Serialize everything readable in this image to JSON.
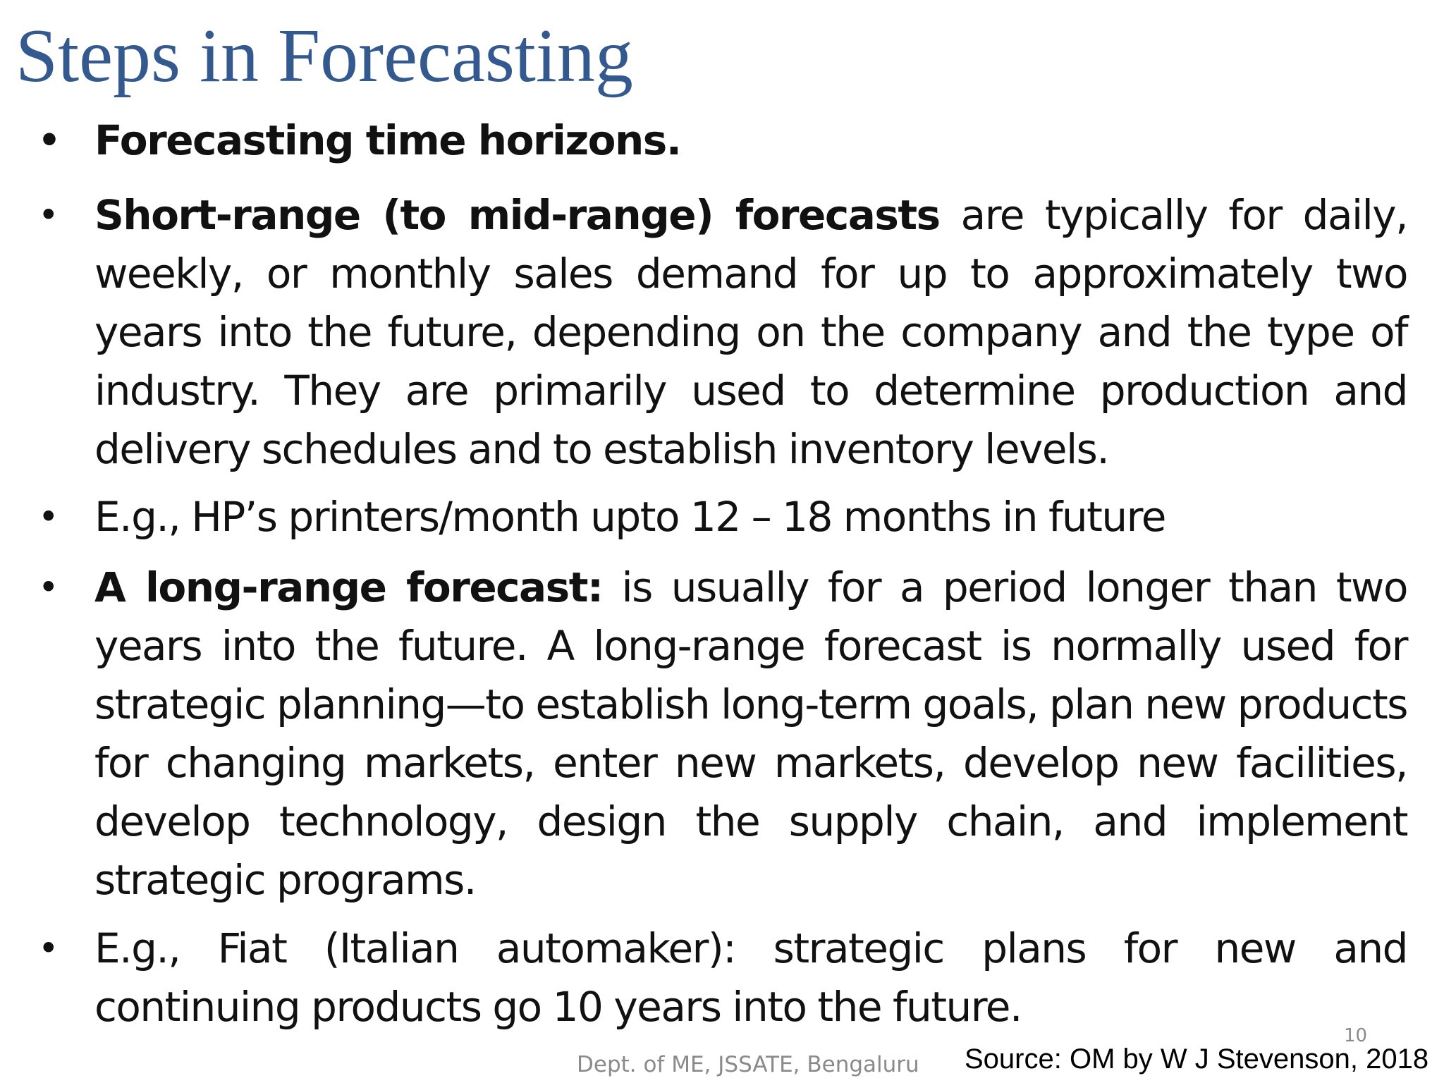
{
  "slide": {
    "title": "Steps in Forecasting",
    "bullets": [
      {
        "lead": "Forecasting time horizons.",
        "text": ""
      },
      {
        "lead": "Short-range (to mid-range) forecasts",
        "text": " are typically for daily, weekly, or monthly sales demand for up to approximately two years into the future, depending on the company and the type of industry. They are primarily used to determine production and delivery schedules and to establish inventory levels."
      },
      {
        "lead": "",
        "text": "E.g., HP’s printers/month upto 12 – 18 months in future"
      },
      {
        "lead": "A long-range forecast:",
        "text": " is usually for a period longer than two years into the future. A long-range forecast is normally used for strategic planning—to establish long-term goals, plan new products for changing markets, enter new markets, develop new facilities, develop technology, design the supply chain, and implement strategic programs."
      },
      {
        "lead": "",
        "text": "E.g., Fiat (Italian automaker): strategic plans for new and continuing products go 10 years into the future."
      }
    ],
    "page_number": "10",
    "footer_dept": "Dept. of ME, JSSATE, Bengaluru",
    "footer_source": "Source: OM by W J Stevenson, 2018"
  },
  "colors": {
    "title": "#33598f",
    "body_text": "#111111",
    "footer_text": "#8a8a8a"
  }
}
